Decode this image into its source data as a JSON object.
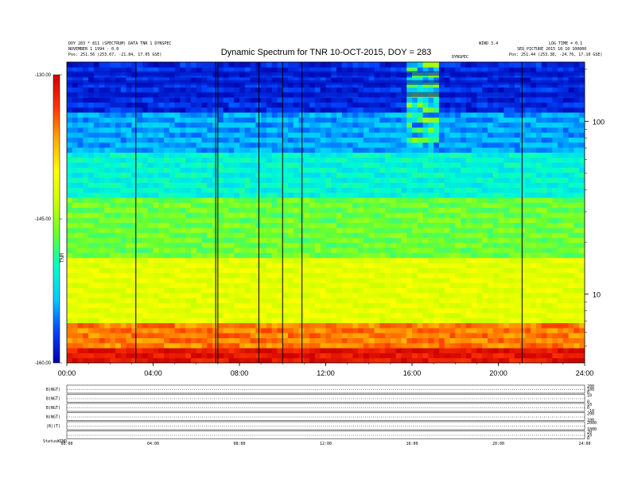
{
  "header": {
    "left_line1": "DOY 283 * 811 (SPECTRUM) DATA  TNR  1 DYNSPEC",
    "left_line2": "NOVEMBER 1 1994 - 0.0",
    "left_pos": "Pos:  251.56 (253.67, -21.84, 17.05 GSE)",
    "right_line1": "WIND 3.4",
    "right_line2": "LOG TIME = 0.1",
    "right_line3": "SEQ_PICTURE 2015 10 10 100000",
    "right_pos": "Pos:  251.44 (253.38, -24.76, 17.10 GSE)",
    "mid_label": "DYNSPEC"
  },
  "chart_data": {
    "type": "heatmap",
    "title": "Dynamic Spectrum for TNR 10-OCT-2015, DOY = 283",
    "x_ticks": [
      "00:00",
      "04:00",
      "08:00",
      "12:00",
      "16:00",
      "20:00",
      "24:00"
    ],
    "x_range_hours": [
      0,
      24
    ],
    "y_scale": "log",
    "y_range_khz": [
      4,
      220
    ],
    "y_ticks": [
      "100",
      "10"
    ],
    "y_tick_values": [
      100,
      10
    ],
    "y_unit": "kHz",
    "colorbar_ticks": [
      "-130.00",
      "-145.00",
      "-160.00"
    ],
    "colorbar_values": [
      -130,
      -145,
      -160
    ],
    "colorbar_label": "TNR",
    "colormap": [
      "#0000aa",
      "#0044ff",
      "#00ccff",
      "#00ffcc",
      "#66ff33",
      "#ccff00",
      "#ffff00",
      "#ffaa00",
      "#ff3300",
      "#cc0000"
    ],
    "vertical_lines_hours": [
      3.2,
      6.9,
      7.0,
      8.9,
      10.0,
      10.9,
      21.1
    ],
    "panels": [
      {
        "label": "B(NGT)",
        "right": [
          "200",
          "100",
          "0"
        ]
      },
      {
        "label": "B(NGT)",
        "right": [
          "10",
          "0"
        ]
      },
      {
        "label": "B(NGT)",
        "right": [
          "10",
          "0",
          "-10"
        ]
      },
      {
        "label": "N(NGT)",
        "right": [
          "200",
          "100"
        ]
      },
      {
        "label": "|B|(T)",
        "right": [
          "2000",
          "1000"
        ]
      },
      {
        "label": "",
        "right": [
          "20",
          "10",
          "0"
        ]
      }
    ],
    "status_label": "Status",
    "status_value": "WIND"
  }
}
